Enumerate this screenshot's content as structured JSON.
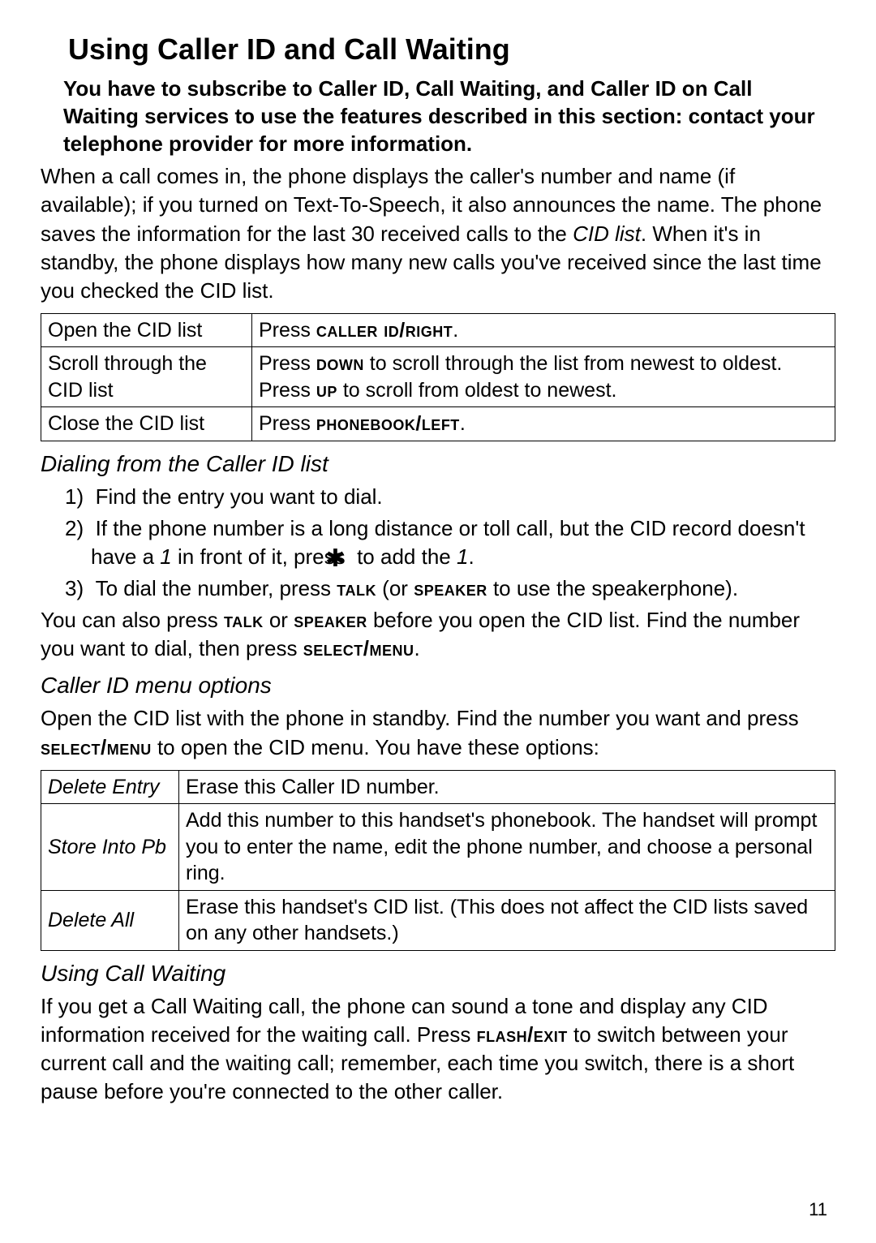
{
  "title": "Using Caller ID and Call Waiting",
  "notice": "You have to subscribe to Caller ID, Call Waiting, and Caller ID on Call Waiting services to use the features described in this section: contact your telephone provider for more information.",
  "intro_part1": "When a call comes in, the phone displays the caller's number and name (if available); if you turned on Text-To-Speech, it also announces the name. The phone saves the information for the last 30 received calls to the ",
  "intro_italic": "CID list",
  "intro_part2": ". When it's in standby, the phone displays how many new calls you've received since the last time you checked the CID list.",
  "table1": {
    "rows": [
      {
        "action": "Open the CID list",
        "pre": "Press ",
        "key": "caller id/right",
        "post": "."
      },
      {
        "action": "Scroll through the CID list",
        "pre": "Press ",
        "key1": "down",
        "mid": " to scroll through the list from newest to oldest. Press ",
        "key2": "up",
        "post": " to scroll from oldest to newest."
      },
      {
        "action": "Close the CID list",
        "pre": "Press ",
        "key": "phonebook/left",
        "post": "."
      }
    ]
  },
  "dialing_heading": "Dialing from the Caller ID list",
  "steps": {
    "s1": "1)  Find the entry you want to dial.",
    "s2_pre": "2)  If the phone number is a long distance or toll call, but the CID record doesn't have a ",
    "s2_i1": "1",
    "s2_mid": " in front of it, press ",
    "s2_star": "✱",
    "s2_post1": " to add the ",
    "s2_i2": "1",
    "s2_end": ".",
    "s3_pre": "3)  To dial the number, press ",
    "s3_k1": "talk",
    "s3_mid": " (or ",
    "s3_k2": "speaker",
    "s3_post": " to use the speakerphone)."
  },
  "also_pre": "You can also press ",
  "also_k1": "talk",
  "also_mid1": " or ",
  "also_k2": "speaker",
  "also_mid2": " before you open the CID list. Find the number you want to dial, then press ",
  "also_k3": "select/menu",
  "also_end": ".",
  "cidmenu_heading": "Caller ID menu options",
  "cidmenu_intro_pre": "Open the CID list with the phone in standby. Find the number you want and press ",
  "cidmenu_intro_key": "select/menu",
  "cidmenu_intro_post": " to open the CID menu. You have these options:",
  "table2": {
    "rows": [
      {
        "opt": "Delete Entry",
        "desc": "Erase this Caller ID number."
      },
      {
        "opt": "Store Into Pb",
        "desc": "Add this number to this handset's phonebook. The handset will prompt you to enter the name, edit the phone number, and choose a personal ring."
      },
      {
        "opt": "Delete All",
        "desc": "Erase this handset's CID list. (This does not affect the CID lists saved on any other handsets.)"
      }
    ]
  },
  "cw_heading": "Using Call Waiting",
  "cw_pre": "If you get a Call Waiting call, the phone can sound a tone and display any CID information received for the waiting call. Press ",
  "cw_key": "flash/exit",
  "cw_post": " to switch between your current call and the waiting call; remember, each time you switch, there is a short pause before you're connected to the other caller.",
  "page_number": "11"
}
